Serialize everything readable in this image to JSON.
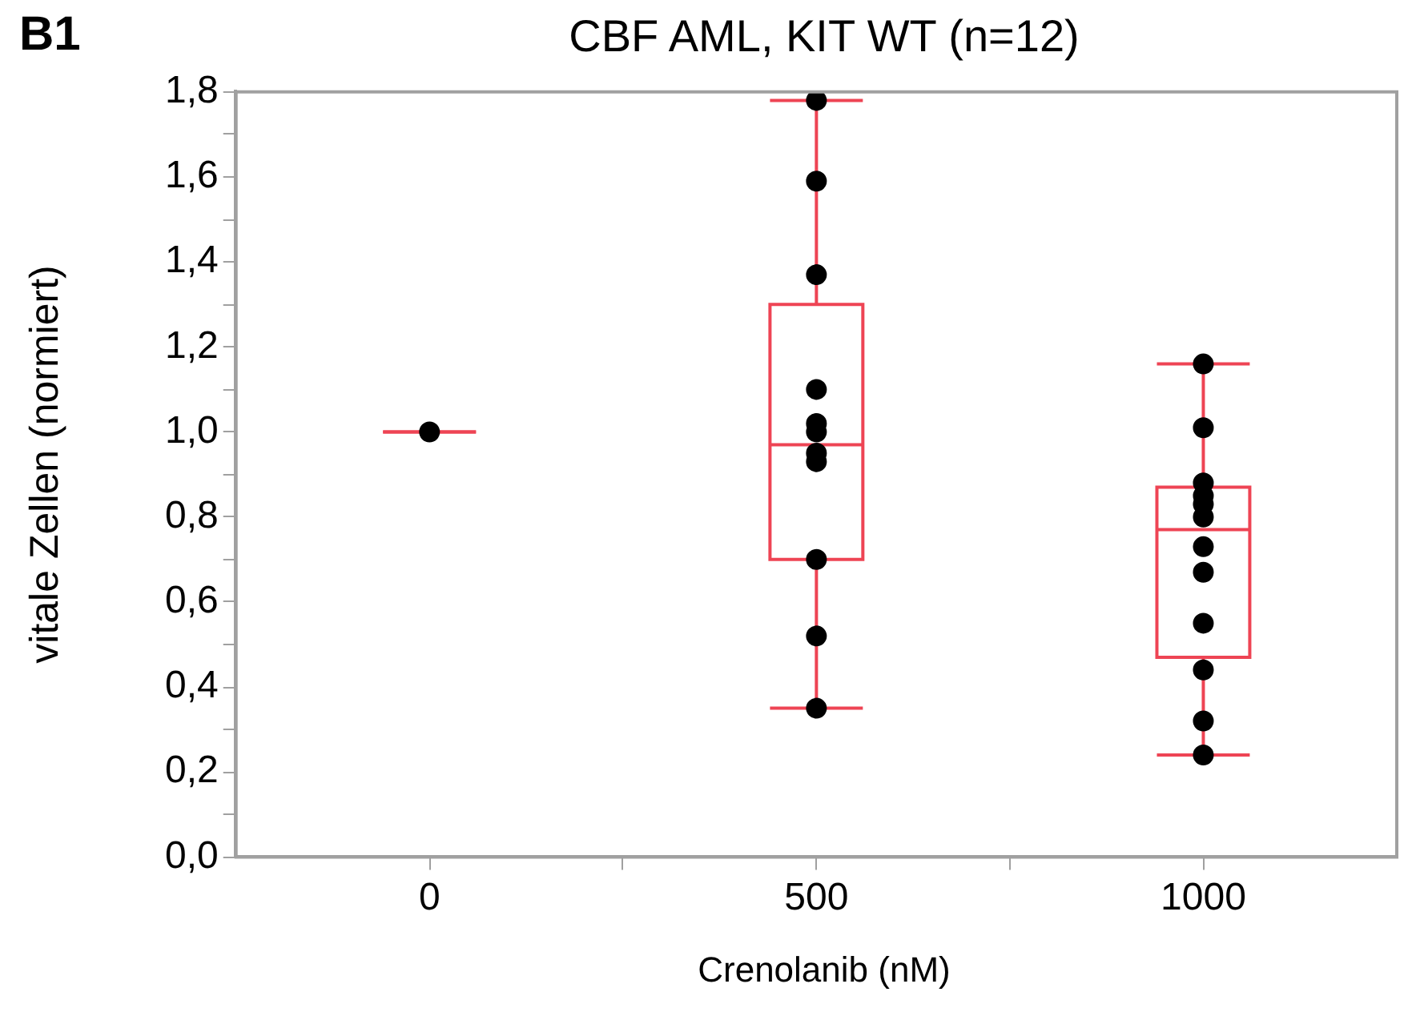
{
  "chart_data": {
    "type": "box",
    "title": "CBF AML, KIT WT (n=12)",
    "xlabel": "Crenolanib (nM)",
    "ylabel": "vitale Zellen (normiert)",
    "annotations": [
      "B1"
    ],
    "x": [
      0,
      500,
      1000
    ],
    "xlim": [
      -250,
      1250
    ],
    "xticks": [
      0,
      {
        "value": 250,
        "label": null
      },
      500,
      {
        "value": 750,
        "label": null
      },
      1000
    ],
    "series": [
      {
        "type": "box",
        "color": "#ee4454",
        "boxes": [
          {
            "low": 1.0,
            "q1": 1.0,
            "median": 1.0,
            "q3": 1.0,
            "high": 1.0
          },
          {
            "low": 0.35,
            "q1": 0.7,
            "median": 0.97,
            "q3": 1.3,
            "high": 1.78
          },
          {
            "low": 0.24,
            "q1": 0.47,
            "median": 0.77,
            "q3": 0.87,
            "high": 1.16
          }
        ]
      },
      {
        "type": "scatter",
        "color": "#000000",
        "x": [
          0,
          500,
          500,
          500,
          500,
          500,
          500,
          500,
          500,
          500,
          500,
          500,
          1000,
          1000,
          1000,
          1000,
          1000,
          1000,
          1000,
          1000,
          1000,
          1000,
          1000,
          1000
        ],
        "values": [
          1,
          1.78,
          1.59,
          1.37,
          1.1,
          1.02,
          1.0,
          0.95,
          0.93,
          0.7,
          0.52,
          0.35,
          1.16,
          1.01,
          0.88,
          0.85,
          0.83,
          0.8,
          0.73,
          0.67,
          0.55,
          0.44,
          0.32,
          0.24
        ]
      }
    ],
    "ylim": [
      0,
      1.8
    ],
    "yticks": [
      {
        "value": 0,
        "label": "0,0"
      },
      {
        "value": 0.1,
        "label": null
      },
      {
        "value": 0.2,
        "label": "0,2"
      },
      {
        "value": 0.3,
        "label": null
      },
      {
        "value": 0.4,
        "label": "0,4"
      },
      {
        "value": 0.5,
        "label": null
      },
      {
        "value": 0.6,
        "label": "0,6"
      },
      {
        "value": 0.7,
        "label": null
      },
      {
        "value": 0.8,
        "label": "0,8"
      },
      {
        "value": 0.9,
        "label": null
      },
      {
        "value": 1.0,
        "label": "1,0"
      },
      {
        "value": 1.1,
        "label": null
      },
      {
        "value": 1.2,
        "label": "1,2"
      },
      {
        "value": 1.3,
        "label": null
      },
      {
        "value": 1.4,
        "label": "1,4"
      },
      {
        "value": 1.5,
        "label": null
      },
      {
        "value": 1.6,
        "label": "1,6"
      },
      {
        "value": 1.7,
        "label": null
      },
      {
        "value": 1.8,
        "label": "1,8"
      }
    ],
    "grid": false,
    "legend": false,
    "marker": "circle"
  }
}
